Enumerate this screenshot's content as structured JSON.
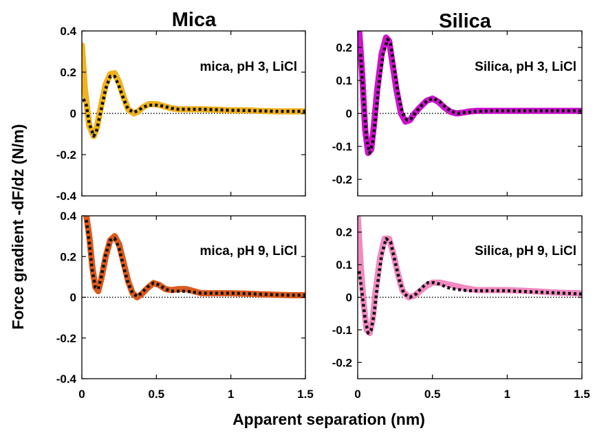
{
  "figure": {
    "column_titles": [
      "Mica",
      "Silica"
    ],
    "ylabel": "Force gradient  -dF/dz (N/m)",
    "xlabel": "Apparent separation (nm)",
    "colors": {
      "mica_ph3": "#f0b21e",
      "mica_ph9": "#dc5a1e",
      "silica_ph3": "#cc14cc",
      "silica_ph9": "#f18ac0",
      "fit": "#111111",
      "zero_line": "#000000"
    }
  },
  "chart_data": [
    {
      "type": "line",
      "panel": "top-left",
      "title": "",
      "label": "mica, pH 3, LiCl",
      "xlim": [
        0,
        1.5
      ],
      "ylim": [
        -0.4,
        0.4
      ],
      "xticks": [
        "0",
        "0.5",
        "1",
        "1.5"
      ],
      "yticks": [
        "-0.4",
        "-0.2",
        "0",
        "0.2",
        "0.4"
      ],
      "show_xticks": false,
      "color": "mica_ph3",
      "series": [
        {
          "role": "data",
          "x": [
            0,
            0.02,
            0.05,
            0.08,
            0.1,
            0.13,
            0.16,
            0.19,
            0.22,
            0.25,
            0.28,
            0.31,
            0.35,
            0.38,
            0.41,
            0.45,
            0.5,
            0.55,
            0.6,
            0.65,
            0.7,
            0.8,
            0.9,
            1.0,
            1.1,
            1.2,
            1.3,
            1.4,
            1.5
          ],
          "y": [
            0.33,
            0.12,
            -0.06,
            -0.11,
            -0.07,
            0.04,
            0.14,
            0.19,
            0.195,
            0.15,
            0.08,
            0.02,
            0.0,
            0.01,
            0.03,
            0.045,
            0.045,
            0.035,
            0.025,
            0.02,
            0.02,
            0.02,
            0.018,
            0.015,
            0.015,
            0.012,
            0.01,
            0.01,
            0.01
          ]
        },
        {
          "role": "fit",
          "x": [
            0.01,
            0.03,
            0.05,
            0.08,
            0.1,
            0.13,
            0.16,
            0.19,
            0.22,
            0.25,
            0.28,
            0.31,
            0.35,
            0.38,
            0.41,
            0.45,
            0.5,
            0.55,
            0.6,
            0.65,
            0.7,
            0.8,
            0.9,
            1.0,
            1.1,
            1.2,
            1.3,
            1.4,
            1.5
          ],
          "y": [
            0.07,
            0.04,
            -0.05,
            -0.11,
            -0.08,
            0.02,
            0.12,
            0.18,
            0.18,
            0.13,
            0.07,
            0.02,
            0.005,
            0.015,
            0.03,
            0.04,
            0.04,
            0.035,
            0.025,
            0.02,
            0.02,
            0.02,
            0.018,
            0.015,
            0.014,
            0.012,
            0.01,
            0.01,
            0.01
          ]
        }
      ]
    },
    {
      "type": "line",
      "panel": "top-right",
      "title": "",
      "label": "Silica, pH 3, LiCl",
      "xlim": [
        0,
        1.5
      ],
      "ylim": [
        -0.25,
        0.25
      ],
      "xticks": [
        "0",
        "0.5",
        "1",
        "1.5"
      ],
      "yticks": [
        "-0.2",
        "-0.1",
        "0",
        "0.1",
        "0.2"
      ],
      "show_xticks": false,
      "color": "silica_ph3",
      "series": [
        {
          "role": "data",
          "x": [
            0.01,
            0.03,
            0.05,
            0.07,
            0.09,
            0.11,
            0.13,
            0.16,
            0.19,
            0.21,
            0.23,
            0.26,
            0.29,
            0.32,
            0.35,
            0.38,
            0.42,
            0.46,
            0.5,
            0.54,
            0.58,
            0.62,
            0.66,
            0.7,
            0.75,
            0.8,
            0.9,
            1.0,
            1.1,
            1.2,
            1.3,
            1.4,
            1.5
          ],
          "y": [
            0.25,
            0.12,
            -0.05,
            -0.12,
            -0.11,
            -0.03,
            0.07,
            0.18,
            0.23,
            0.22,
            0.16,
            0.07,
            0.0,
            -0.025,
            -0.02,
            0.0,
            0.02,
            0.038,
            0.045,
            0.035,
            0.018,
            0.005,
            0.0,
            0.002,
            0.006,
            0.008,
            0.008,
            0.008,
            0.008,
            0.008,
            0.008,
            0.008,
            0.008
          ]
        },
        {
          "role": "fit",
          "x": [
            0.02,
            0.04,
            0.06,
            0.08,
            0.1,
            0.12,
            0.14,
            0.17,
            0.2,
            0.22,
            0.24,
            0.27,
            0.3,
            0.33,
            0.36,
            0.39,
            0.43,
            0.47,
            0.51,
            0.55,
            0.59,
            0.63,
            0.67,
            0.7,
            0.8,
            0.9,
            1.0,
            1.1,
            1.2,
            1.3,
            1.4,
            1.5
          ],
          "y": [
            0.18,
            0.04,
            -0.08,
            -0.12,
            -0.09,
            -0.01,
            0.08,
            0.18,
            0.225,
            0.21,
            0.15,
            0.06,
            0.0,
            -0.02,
            -0.015,
            0.005,
            0.025,
            0.04,
            0.045,
            0.035,
            0.018,
            0.005,
            0.0,
            0.002,
            0.006,
            0.008,
            0.008,
            0.008,
            0.008,
            0.008,
            0.008,
            0.008
          ]
        }
      ]
    },
    {
      "type": "line",
      "panel": "bottom-left",
      "title": "",
      "label": "mica, pH 9, LiCl",
      "xlim": [
        0,
        1.5
      ],
      "ylim": [
        -0.4,
        0.4
      ],
      "xticks": [
        "0",
        "0.5",
        "1",
        "1.5"
      ],
      "yticks": [
        "-0.4",
        "-0.2",
        "0",
        "0.2",
        "0.4"
      ],
      "show_xticks": true,
      "color": "mica_ph9",
      "series": [
        {
          "role": "data",
          "x": [
            0.03,
            0.05,
            0.07,
            0.09,
            0.11,
            0.13,
            0.16,
            0.19,
            0.22,
            0.25,
            0.28,
            0.31,
            0.34,
            0.37,
            0.4,
            0.44,
            0.48,
            0.52,
            0.56,
            0.6,
            0.65,
            0.7,
            0.75,
            0.8,
            0.9,
            1.0,
            1.1,
            1.2,
            1.3,
            1.4,
            1.5
          ],
          "y": [
            0.4,
            0.3,
            0.15,
            0.05,
            0.03,
            0.09,
            0.2,
            0.28,
            0.3,
            0.26,
            0.17,
            0.08,
            0.02,
            0.0,
            0.015,
            0.045,
            0.07,
            0.06,
            0.04,
            0.035,
            0.04,
            0.04,
            0.03,
            0.02,
            0.02,
            0.02,
            0.018,
            0.015,
            0.012,
            0.01,
            0.01
          ]
        },
        {
          "role": "fit",
          "x": [
            0.03,
            0.05,
            0.07,
            0.09,
            0.11,
            0.13,
            0.16,
            0.19,
            0.22,
            0.25,
            0.28,
            0.31,
            0.34,
            0.37,
            0.4,
            0.44,
            0.48,
            0.52,
            0.56,
            0.6,
            0.65,
            0.7,
            0.75,
            0.8,
            0.9,
            1.0,
            1.1,
            1.2,
            1.3,
            1.4,
            1.5
          ],
          "y": [
            0.38,
            0.27,
            0.13,
            0.05,
            0.04,
            0.1,
            0.21,
            0.28,
            0.29,
            0.24,
            0.15,
            0.07,
            0.02,
            0.005,
            0.02,
            0.05,
            0.07,
            0.06,
            0.04,
            0.03,
            0.03,
            0.03,
            0.025,
            0.02,
            0.02,
            0.02,
            0.018,
            0.015,
            0.012,
            0.01,
            0.01
          ]
        }
      ]
    },
    {
      "type": "line",
      "panel": "bottom-right",
      "title": "",
      "label": "Silica, pH 9, LiCl",
      "xlim": [
        0,
        1.5
      ],
      "ylim": [
        -0.25,
        0.25
      ],
      "xticks": [
        "0",
        "0.5",
        "1",
        "1.5"
      ],
      "yticks": [
        "-0.2",
        "-0.1",
        "0",
        "0.1",
        "0.2"
      ],
      "show_xticks": true,
      "color": "silica_ph9",
      "series": [
        {
          "role": "data",
          "x": [
            0.0,
            0.02,
            0.04,
            0.06,
            0.08,
            0.1,
            0.12,
            0.15,
            0.18,
            0.21,
            0.24,
            0.27,
            0.3,
            0.34,
            0.38,
            0.42,
            0.46,
            0.5,
            0.55,
            0.6,
            0.65,
            0.7,
            0.75,
            0.8,
            0.9,
            1.0,
            1.1,
            1.2,
            1.3,
            1.4,
            1.5
          ],
          "y": [
            0.25,
            0.1,
            -0.02,
            -0.1,
            -0.11,
            -0.07,
            0.02,
            0.12,
            0.18,
            0.18,
            0.13,
            0.07,
            0.02,
            0.0,
            0.005,
            0.02,
            0.035,
            0.045,
            0.045,
            0.04,
            0.035,
            0.03,
            0.025,
            0.022,
            0.022,
            0.022,
            0.02,
            0.018,
            0.015,
            0.013,
            0.012
          ]
        },
        {
          "role": "fit",
          "x": [
            0.01,
            0.03,
            0.05,
            0.07,
            0.09,
            0.11,
            0.13,
            0.16,
            0.19,
            0.22,
            0.25,
            0.28,
            0.31,
            0.35,
            0.39,
            0.43,
            0.47,
            0.51,
            0.55,
            0.6,
            0.65,
            0.7,
            0.75,
            0.8,
            0.9,
            1.0,
            1.1,
            1.2,
            1.3,
            1.4,
            1.5
          ],
          "y": [
            0.08,
            0.01,
            -0.07,
            -0.11,
            -0.1,
            -0.05,
            0.03,
            0.13,
            0.18,
            0.17,
            0.11,
            0.05,
            0.01,
            0.0,
            0.01,
            0.03,
            0.045,
            0.045,
            0.04,
            0.03,
            0.025,
            0.022,
            0.02,
            0.02,
            0.02,
            0.02,
            0.018,
            0.016,
            0.014,
            0.012,
            0.01
          ]
        }
      ]
    }
  ]
}
